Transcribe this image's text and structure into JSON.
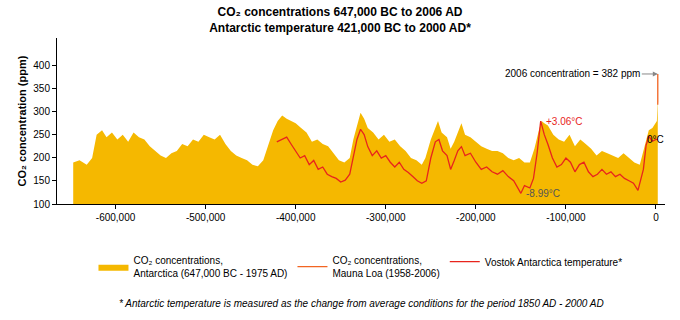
{
  "chart_data": {
    "type": "area",
    "title": "CO₂ concentrations 647,000 BC to 2006 AD",
    "subtitle": "Antarctic temperature 421,000 BC to 2000 AD*",
    "y_label": "CO₂ concentration (ppm)",
    "footnote": "* Antarctic temperature is measured as the change from average conditions for the period 1850 AD - 2000 AD",
    "xlim": [
      -665000,
      10000
    ],
    "xticks": [
      {
        "value": -600000,
        "label": "-600,000"
      },
      {
        "value": -500000,
        "label": "-500,000"
      },
      {
        "value": -400000,
        "label": "-400,000"
      },
      {
        "value": -300000,
        "label": "-300,000"
      },
      {
        "value": -200000,
        "label": "-200,000"
      },
      {
        "value": -100000,
        "label": "-100,000"
      },
      0
    ],
    "ylim": [
      100,
      460
    ],
    "yticks": [
      100,
      150,
      200,
      250,
      300,
      350,
      400
    ],
    "y2lim": [
      -10.77,
      16.92
    ],
    "grid": false,
    "legend": "bottom",
    "series": [
      {
        "name": "CO₂ concentrations, Antarctica (647,000 BC - 1975 AD)",
        "type": "area",
        "color": "#f5b800",
        "x": [
          -647000,
          -640000,
          -632000,
          -626000,
          -621000,
          -615000,
          -610000,
          -604000,
          -598000,
          -592000,
          -586000,
          -580000,
          -574000,
          -568000,
          -562000,
          -556000,
          -550000,
          -544000,
          -538000,
          -532000,
          -526000,
          -520000,
          -514000,
          -508000,
          -502000,
          -496000,
          -490000,
          -484000,
          -478000,
          -472000,
          -466000,
          -460000,
          -454000,
          -448000,
          -442000,
          -436000,
          -430000,
          -425000,
          -420000,
          -415000,
          -410000,
          -405000,
          -400000,
          -394000,
          -388000,
          -382000,
          -376000,
          -370000,
          -364000,
          -358000,
          -352000,
          -346000,
          -340000,
          -336000,
          -332000,
          -328000,
          -324000,
          -320000,
          -314000,
          -308000,
          -302000,
          -296000,
          -290000,
          -284000,
          -278000,
          -272000,
          -266000,
          -260000,
          -256000,
          -250000,
          -245000,
          -242000,
          -238000,
          -232000,
          -228000,
          -224000,
          -220000,
          -216000,
          -212000,
          -206000,
          -200000,
          -194000,
          -188000,
          -182000,
          -176000,
          -170000,
          -164000,
          -158000,
          -152000,
          -146000,
          -140000,
          -135000,
          -130000,
          -127000,
          -124000,
          -120000,
          -114000,
          -108000,
          -102000,
          -96000,
          -90000,
          -84000,
          -78000,
          -72000,
          -66000,
          -60000,
          -54000,
          -48000,
          -42000,
          -36000,
          -30000,
          -24000,
          -18000,
          -14000,
          -11000,
          -8000,
          -4000,
          0,
          1000,
          1975
        ],
        "values": [
          190,
          195,
          185,
          200,
          250,
          260,
          245,
          255,
          240,
          250,
          235,
          255,
          245,
          240,
          225,
          215,
          205,
          200,
          210,
          215,
          230,
          225,
          240,
          235,
          250,
          245,
          240,
          250,
          230,
          215,
          205,
          200,
          195,
          185,
          182,
          195,
          230,
          260,
          280,
          292,
          285,
          280,
          275,
          265,
          255,
          235,
          240,
          230,
          225,
          210,
          195,
          190,
          200,
          240,
          270,
          298,
          285,
          265,
          255,
          240,
          250,
          235,
          240,
          225,
          215,
          200,
          195,
          185,
          200,
          240,
          265,
          280,
          255,
          245,
          220,
          235,
          255,
          275,
          250,
          245,
          235,
          225,
          220,
          215,
          215,
          210,
          200,
          195,
          200,
          190,
          190,
          220,
          260,
          280,
          275,
          270,
          250,
          240,
          235,
          250,
          225,
          240,
          230,
          220,
          205,
          215,
          210,
          205,
          200,
          210,
          200,
          190,
          185,
          215,
          240,
          260,
          265,
          275,
          280,
          330
        ]
      },
      {
        "name": "CO₂ concentrations, Mauna Loa (1958-2006)",
        "type": "line",
        "color": "#f26522",
        "x": [
          1958,
          1970,
          1980,
          1990,
          2000,
          2006
        ],
        "values": [
          315,
          325,
          338,
          354,
          369,
          382
        ]
      },
      {
        "name": "Vostok Antarctica temperature*",
        "type": "line",
        "color": "#e8241c",
        "axis": "y2",
        "x": [
          -421000,
          -415000,
          -410000,
          -405000,
          -400000,
          -395000,
          -390000,
          -385000,
          -380000,
          -375000,
          -370000,
          -365000,
          -360000,
          -355000,
          -350000,
          -345000,
          -340000,
          -336000,
          -332000,
          -328000,
          -324000,
          -320000,
          -315000,
          -310000,
          -305000,
          -300000,
          -295000,
          -290000,
          -285000,
          -280000,
          -275000,
          -270000,
          -265000,
          -260000,
          -255000,
          -250000,
          -245000,
          -241000,
          -237000,
          -232000,
          -228000,
          -224000,
          -220000,
          -216000,
          -212000,
          -206000,
          -200000,
          -194000,
          -188000,
          -182000,
          -176000,
          -170000,
          -164000,
          -158000,
          -150000,
          -146000,
          -140000,
          -136000,
          -132000,
          -128000,
          -124000,
          -120000,
          -115000,
          -110000,
          -105000,
          -100000,
          -95000,
          -90000,
          -85000,
          -80000,
          -75000,
          -70000,
          -65000,
          -60000,
          -55000,
          -50000,
          -45000,
          -40000,
          -35000,
          -30000,
          -25000,
          -20000,
          -14000,
          -11000,
          -8000,
          -4000,
          0,
          2000
        ],
        "values": [
          -0.4,
          0,
          0.4,
          -0.8,
          -1.9,
          -3.1,
          -2.7,
          -4.2,
          -3.5,
          -5,
          -4.6,
          -5.8,
          -6.2,
          -6.5,
          -7.1,
          -6.8,
          -5.8,
          -3.1,
          0,
          1.7,
          0.8,
          -1.2,
          -2.7,
          -1.9,
          -3.1,
          -2.7,
          -3.8,
          -4.6,
          -3.8,
          -5,
          -5.5,
          -6.2,
          -6.9,
          -7.3,
          -6.9,
          -3.1,
          -0.4,
          0,
          -1.9,
          -2.7,
          -5,
          -3.5,
          -1.9,
          -1.2,
          -2.7,
          -2.3,
          -3.8,
          -5,
          -4.6,
          -5.4,
          -5.8,
          -5.2,
          -6.2,
          -6.9,
          -8.99,
          -7.7,
          -8.1,
          -6.5,
          -2.3,
          3.06,
          0.8,
          -0.8,
          -3.1,
          -4.6,
          -4.2,
          -3.1,
          -3.8,
          -5.4,
          -4.2,
          -3.8,
          -5.4,
          -6.2,
          -5.8,
          -5,
          -5.8,
          -5.4,
          -6.2,
          -5.8,
          -6.5,
          -6.9,
          -7.3,
          -8.5,
          -5,
          -1,
          0.5,
          -0.3,
          0,
          0
        ]
      }
    ],
    "annotations": [
      {
        "text": "+3.06°C",
        "x": -124000,
        "y": 3.06,
        "axis": "y2",
        "color": "#e8241c"
      },
      {
        "text": "-8.99°C",
        "x": -146000,
        "y": -8.99,
        "axis": "y2",
        "color": "#555555"
      },
      {
        "text": "0°C",
        "x": -12000,
        "y": 0,
        "axis": "y2",
        "color": "#000000"
      },
      {
        "text": "2006 concentration = 382 ppm",
        "x": 2006,
        "y": 382,
        "color": "#000000",
        "marker": "arrow"
      }
    ]
  }
}
